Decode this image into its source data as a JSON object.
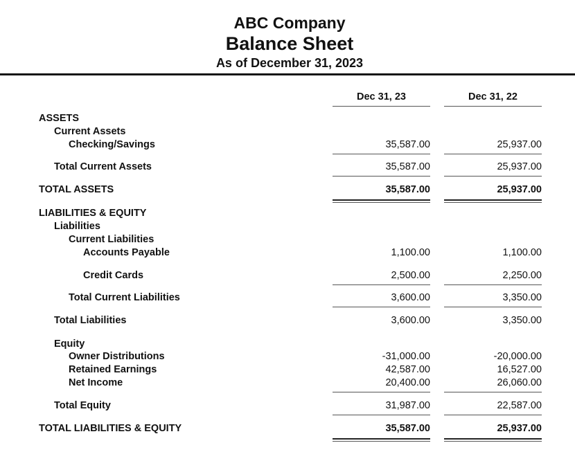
{
  "header": {
    "company": "ABC Company",
    "title": "Balance Sheet",
    "as_of": "As of December 31, 2023"
  },
  "columns": [
    "Dec 31, 23",
    "Dec 31, 22"
  ],
  "rows": [
    {
      "label": "ASSETS",
      "level": 0
    },
    {
      "label": "Current Assets",
      "level": 1
    },
    {
      "label": "Checking/Savings",
      "level": 2,
      "values": [
        "35,587.00",
        "25,937.00"
      ],
      "rule": "single"
    },
    {
      "label": "Total Current Assets",
      "level": 1,
      "values": [
        "35,587.00",
        "25,937.00"
      ],
      "rule": "single"
    },
    {
      "label": "TOTAL ASSETS",
      "level": 0,
      "values": [
        "35,587.00",
        "25,937.00"
      ],
      "bold_values": true,
      "rule": "double"
    },
    {
      "label": "LIABILITIES & EQUITY",
      "level": 0
    },
    {
      "label": "Liabilities",
      "level": 1
    },
    {
      "label": "Current Liabilities",
      "level": 2
    },
    {
      "label": "Accounts Payable",
      "level": 3,
      "values": [
        "1,100.00",
        "1,100.00"
      ]
    },
    {
      "label": "Credit Cards",
      "level": 3,
      "values": [
        "2,500.00",
        "2,250.00"
      ],
      "rule": "single"
    },
    {
      "label": "Total Current Liabilities",
      "level": 2,
      "values": [
        "3,600.00",
        "3,350.00"
      ],
      "rule": "single"
    },
    {
      "label": "Total Liabilities",
      "level": 1,
      "values": [
        "3,600.00",
        "3,350.00"
      ]
    },
    {
      "label": "Equity",
      "level": 1
    },
    {
      "label": "Owner Distributions",
      "level": 2,
      "values": [
        "-31,000.00",
        "-20,000.00"
      ]
    },
    {
      "label": "Retained Earnings",
      "level": 2,
      "values": [
        "42,587.00",
        "16,527.00"
      ]
    },
    {
      "label": "Net Income",
      "level": 2,
      "values": [
        "20,400.00",
        "26,060.00"
      ],
      "rule": "single"
    },
    {
      "label": "Total Equity",
      "level": 1,
      "values": [
        "31,987.00",
        "22,587.00"
      ],
      "rule": "single"
    },
    {
      "label": "TOTAL LIABILITIES & EQUITY",
      "level": 0,
      "values": [
        "35,587.00",
        "25,937.00"
      ],
      "bold_values": true,
      "rule": "double"
    }
  ]
}
